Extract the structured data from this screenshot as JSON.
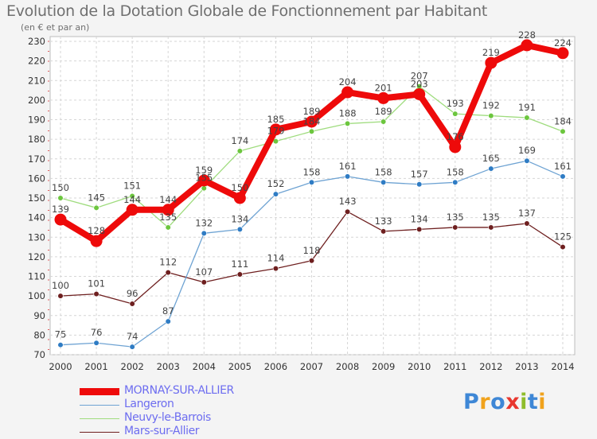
{
  "title": "Evolution de la Dotation Globale de Fonctionnement par Habitant",
  "subtitle": "(en € et par an)",
  "logo": {
    "letters": [
      "P",
      "r",
      "o",
      "x",
      "i",
      "t",
      "i"
    ],
    "colors": [
      "#3e87d6",
      "#f0a21c",
      "#3e87d6",
      "#e8372f",
      "#8fbd2c",
      "#3e87d6",
      "#f0a21c"
    ]
  },
  "chart_data": {
    "type": "line",
    "title": "Evolution de la Dotation Globale de Fonctionnement par Habitant",
    "subtitle": "(en € et par an)",
    "x": [
      "2000",
      "2001",
      "2002",
      "2003",
      "2004",
      "2005",
      "2006",
      "2007",
      "2008",
      "2009",
      "2010",
      "2011",
      "2012",
      "2013",
      "2014"
    ],
    "ylim": [
      70,
      230
    ],
    "yticks": [
      70,
      80,
      90,
      100,
      110,
      120,
      130,
      140,
      150,
      160,
      170,
      180,
      190,
      200,
      210,
      220,
      230
    ],
    "grid": true,
    "legend_position": "bottom-left",
    "series": [
      {
        "name": "Mars-sur-Allier",
        "color": "#6e1f1f",
        "marker": "#6e1f1f",
        "values": [
          100,
          101,
          96,
          112,
          107,
          111,
          114,
          118,
          143,
          133,
          134,
          135,
          135,
          137,
          125
        ],
        "labels": [
          "100",
          "101",
          "96",
          "112",
          "107",
          "111",
          "114",
          "118",
          "143",
          "133",
          "134",
          "135",
          "135",
          "137",
          "125"
        ]
      },
      {
        "name": "Langeron",
        "color": "#6ea3d3",
        "marker": "#2f7cc4",
        "values": [
          75,
          76,
          74,
          87,
          132,
          134,
          152,
          158,
          161,
          158,
          157,
          158,
          165,
          169,
          161
        ],
        "labels": [
          "75",
          "76",
          "74",
          "87",
          "132",
          "134",
          "152",
          "158",
          "161",
          "158",
          "157",
          "158",
          "165",
          "169",
          "161"
        ]
      },
      {
        "name": "Neuvy-le-Barrois",
        "color": "#9fdc7e",
        "marker": "#6cc63e",
        "values": [
          150,
          145,
          151,
          135,
          155,
          174,
          179,
          184,
          188,
          189,
          207,
          193,
          192,
          191,
          184
        ],
        "labels": [
          "150",
          "145",
          "151",
          "135",
          "155",
          "174",
          "179",
          "184",
          "188",
          "189",
          "207",
          "193",
          "192",
          "191",
          "184"
        ]
      },
      {
        "name": "MORNAY-SUR-ALLIER",
        "color": "#ee0a0a",
        "marker": "#ee0a0a",
        "values": [
          139,
          128,
          144,
          144,
          159,
          150,
          185,
          189,
          204,
          201,
          203,
          176,
          219,
          228,
          224
        ],
        "labels": [
          "139",
          "128",
          "144",
          "144",
          "159",
          "150",
          "185",
          "189",
          "204",
          "201",
          "203",
          "176",
          "219",
          "228",
          "224"
        ]
      }
    ],
    "legend": [
      {
        "name": "MORNAY-SUR-ALLIER",
        "color": "#ee0a0a"
      },
      {
        "name": "Langeron",
        "color": "#6ea3d3"
      },
      {
        "name": "Neuvy-le-Barrois",
        "color": "#9fdc7e"
      },
      {
        "name": "Mars-sur-Allier",
        "color": "#6e1f1f"
      }
    ]
  }
}
